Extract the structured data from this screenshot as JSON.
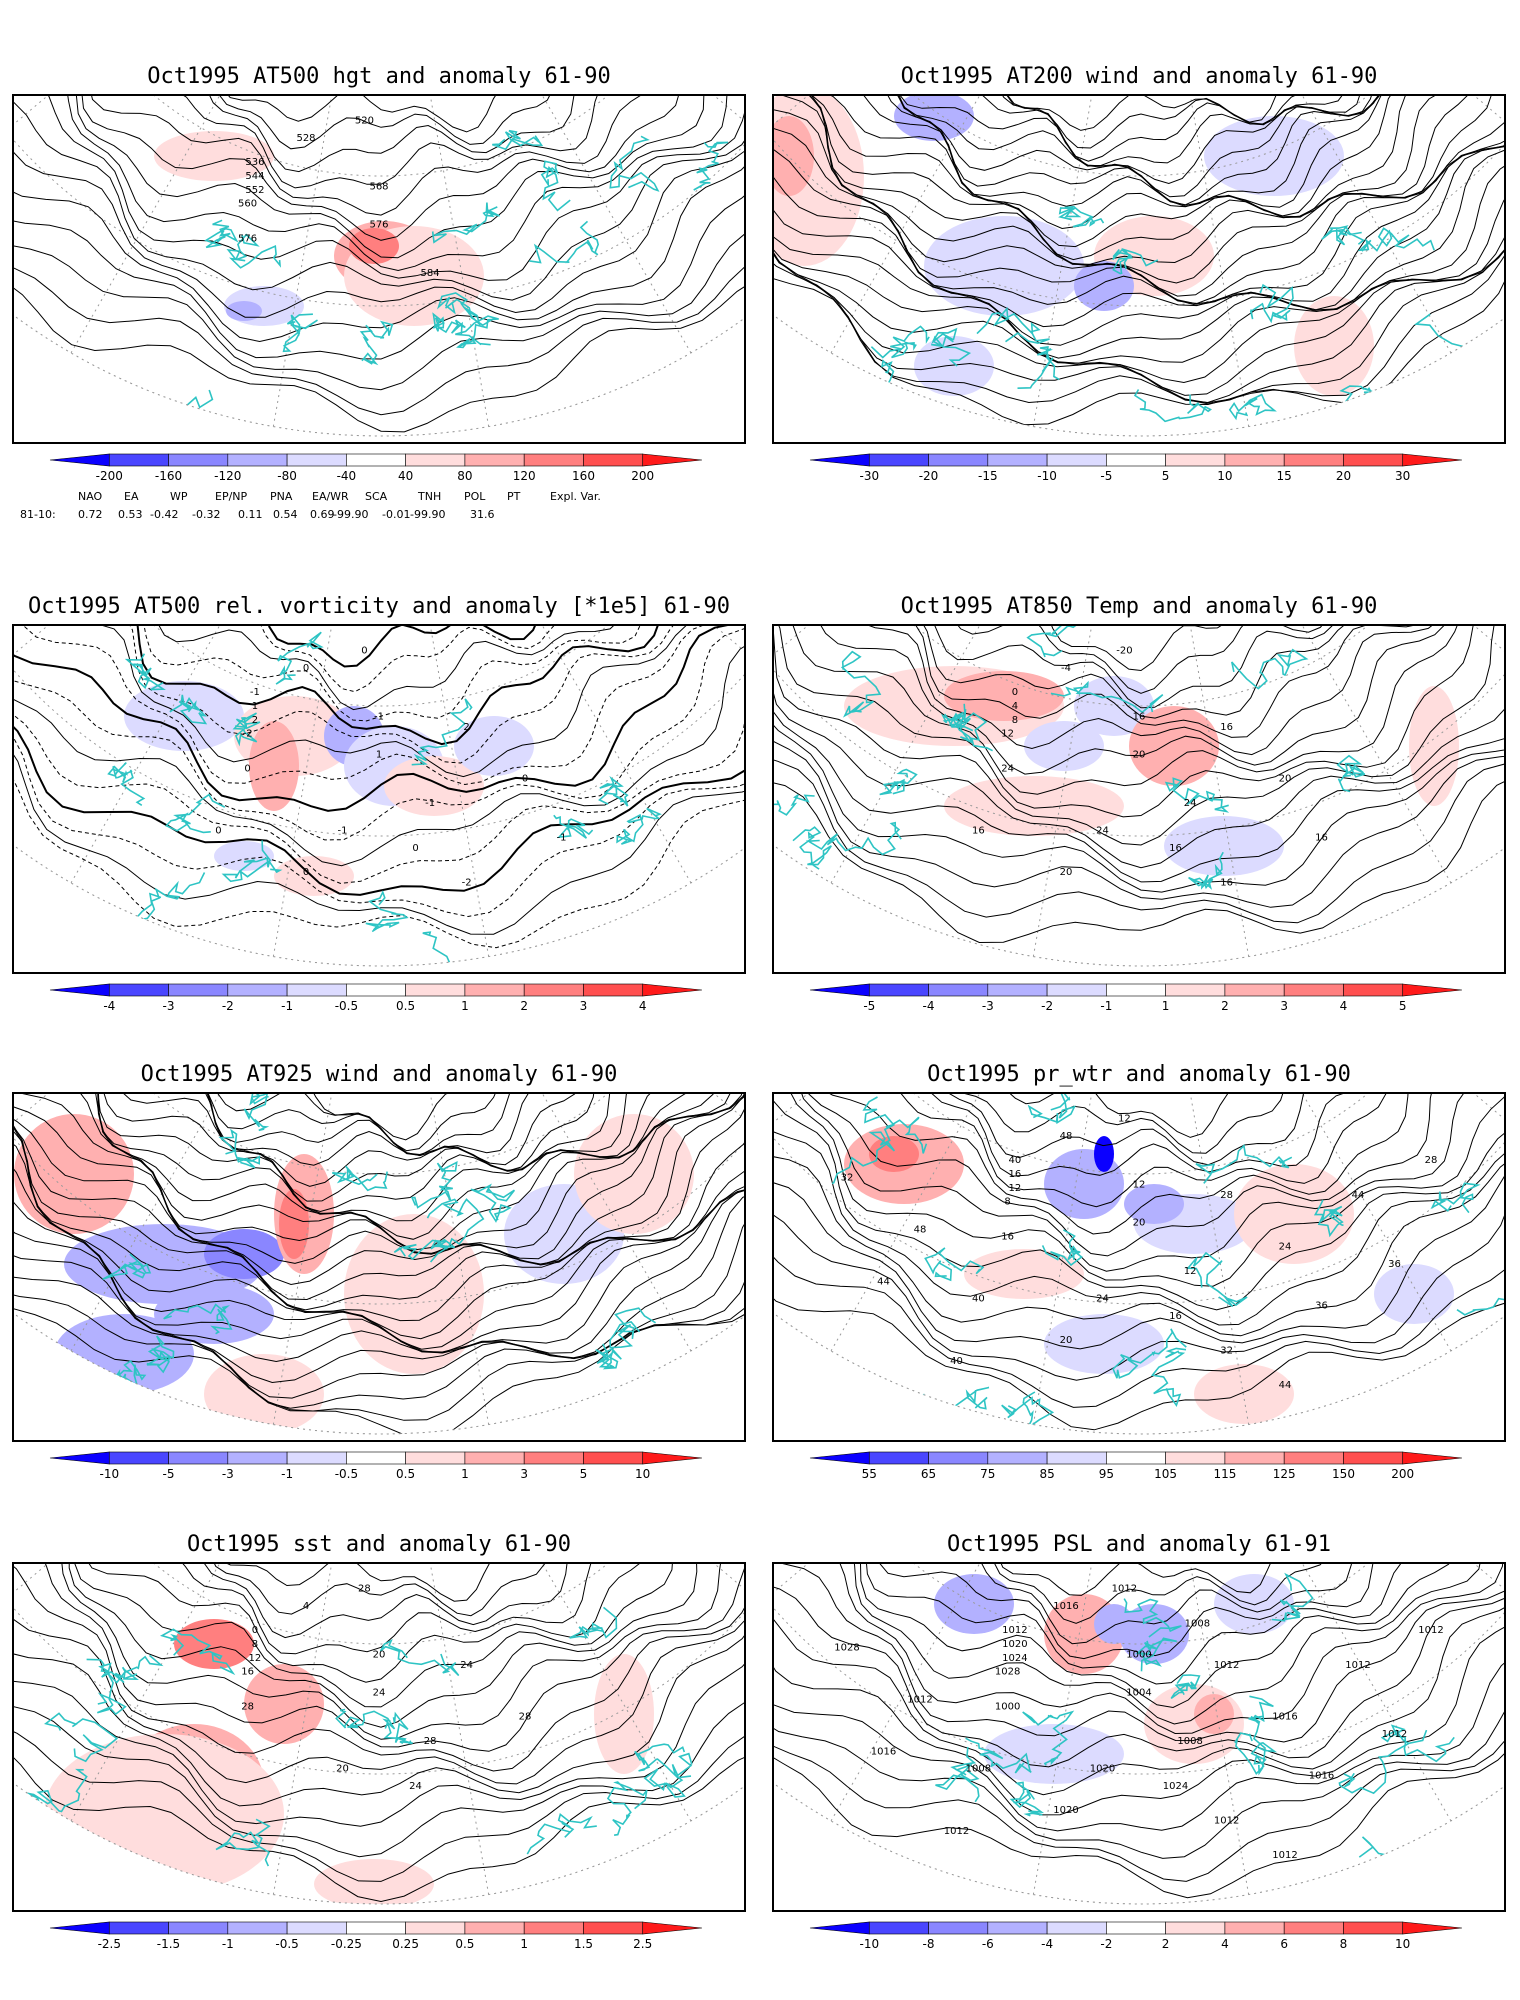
{
  "panels": [
    {
      "title": "Oct1995 AT500 hgt and anomaly 61-90",
      "field": "hgt",
      "contour_labels": [
        "520",
        "528",
        "536",
        "544",
        "552",
        "560",
        "568",
        "576",
        "576",
        "584"
      ],
      "colorbar_ticks": [
        "-200",
        "-160",
        "-120",
        "-80",
        "-40",
        "40",
        "80",
        "120",
        "160",
        "200"
      ],
      "teleconnections": {
        "period_label": "81-10:",
        "headers": [
          "NAO",
          "EA",
          "WP",
          "EP/NP",
          "PNA",
          "EA/WR",
          "SCA",
          "TNH",
          "POL",
          "PT",
          "Expl. Var."
        ],
        "values": [
          "0.72",
          "0.53",
          "-0.42",
          "-0.32",
          "0.11",
          "0.54",
          "0.69",
          "-99.90",
          "-0.01",
          "-99.90",
          "31.6"
        ]
      }
    },
    {
      "title": "Oct1995 AT200 wind and anomaly 61-90",
      "field": "wind",
      "contour_labels": [],
      "colorbar_ticks": [
        "-30",
        "-20",
        "-15",
        "-10",
        "-5",
        "5",
        "10",
        "15",
        "20",
        "30"
      ]
    },
    {
      "title": "Oct1995 AT500 rel. vorticity and anomaly [*1e5] 61-90",
      "field": "vort",
      "contour_labels": [
        "0",
        "0",
        "-1",
        "1",
        "2",
        "-2",
        "-1",
        "1",
        "0",
        "-1",
        "2",
        "0",
        "-1",
        "0",
        "0",
        "-2",
        "-1",
        "0"
      ],
      "colorbar_ticks": [
        "-4",
        "-3",
        "-2",
        "-1",
        "-0.5",
        "0.5",
        "1",
        "2",
        "3",
        "4"
      ]
    },
    {
      "title": "Oct1995 AT850 Temp and anomaly 61-90",
      "field": "temp",
      "contour_labels": [
        "-20",
        "-4",
        "0",
        "4",
        "8",
        "12",
        "16",
        "20",
        "24",
        "24",
        "16",
        "20",
        "24",
        "16",
        "20",
        "16",
        "16",
        "16"
      ],
      "colorbar_ticks": [
        "-5",
        "-4",
        "-3",
        "-2",
        "-1",
        "1",
        "2",
        "3",
        "4",
        "5"
      ]
    },
    {
      "title": "Oct1995 AT925 wind and anomaly 61-90",
      "field": "wind925",
      "contour_labels": [],
      "colorbar_ticks": [
        "-10",
        "-5",
        "-3",
        "-1",
        "-0.5",
        "0.5",
        "1",
        "3",
        "5",
        "10"
      ]
    },
    {
      "title": "Oct1995 pr_wtr and anomaly 61-90",
      "field": "prwtr",
      "contour_labels": [
        "12",
        "48",
        "40",
        "16",
        "12",
        "8",
        "12",
        "20",
        "16",
        "12",
        "28",
        "24",
        "24",
        "16",
        "20",
        "32",
        "36",
        "40",
        "44",
        "48",
        "44",
        "36",
        "40",
        "44",
        "28",
        "32"
      ],
      "colorbar_ticks": [
        "55",
        "65",
        "75",
        "85",
        "95",
        "105",
        "115",
        "125",
        "150",
        "200"
      ]
    },
    {
      "title": "Oct1995 sst and anomaly 61-90",
      "field": "sst",
      "contour_labels": [
        "28",
        "4",
        "0",
        "8",
        "12",
        "16",
        "20",
        "24",
        "28",
        "28",
        "24",
        "28",
        "20",
        "24"
      ],
      "colorbar_ticks": [
        "-2.5",
        "-1.5",
        "-1",
        "-0.5",
        "-0.25",
        "0.25",
        "0.5",
        "1",
        "1.5",
        "2.5"
      ]
    },
    {
      "title": "Oct1995 PSL and anomaly 61-91",
      "field": "psl",
      "contour_labels": [
        "1012",
        "1016",
        "1012",
        "1020",
        "1024",
        "1028",
        "1000",
        "1004",
        "1000",
        "1008",
        "1012",
        "1016",
        "1020",
        "1024",
        "1020",
        "1012",
        "1016",
        "1008",
        "1012",
        "1012",
        "1016",
        "1012",
        "1012",
        "1012",
        "1012",
        "1028",
        "1008"
      ],
      "colorbar_ticks": [
        "-10",
        "-8",
        "-6",
        "-4",
        "-2",
        "2",
        "4",
        "6",
        "8",
        "10"
      ]
    }
  ],
  "colors": {
    "coast": "#2ec4c4",
    "contour": "#000000",
    "grid": "#9a9a9a",
    "scale": [
      "#0b00ff",
      "#4a46ff",
      "#8a86ff",
      "#b3b1ff",
      "#dcdbff",
      "#ffffff",
      "#ffdddd",
      "#ffb0b0",
      "#ff7f7f",
      "#ff4f4f",
      "#ff1a1a"
    ]
  }
}
